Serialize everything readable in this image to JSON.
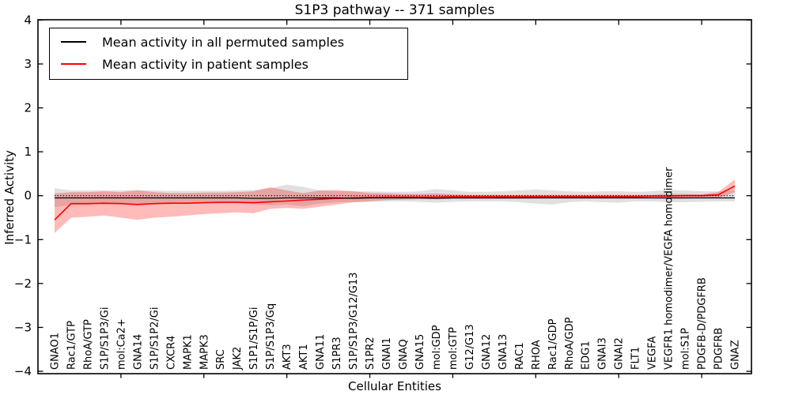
{
  "figure": {
    "background": "#ffffff",
    "frame_color": "#000000"
  },
  "legend": {
    "items": [
      {
        "label": "Mean activity in all permuted samples",
        "color": "#000000"
      },
      {
        "label": "Mean activity in patient samples",
        "color": "#ff0000"
      }
    ]
  },
  "chart_data": {
    "type": "line",
    "title": "S1P3 pathway -- 371 samples",
    "xlabel": "Cellular Entities",
    "ylabel": "Inferred Activity",
    "ylim": [
      -4,
      4
    ],
    "yticks": [
      -4,
      -3,
      -2,
      -1,
      0,
      1,
      2,
      3,
      4
    ],
    "ytick_labels": [
      "−4",
      "−3",
      "−2",
      "−1",
      "0",
      "1",
      "2",
      "3",
      "4"
    ],
    "xticks": [
      5,
      10,
      15,
      20,
      25,
      30,
      35,
      40
    ],
    "grid": false,
    "legend_position": "upper left",
    "reference_line": {
      "y": 0,
      "style": "dotted",
      "color": "#000000"
    },
    "categories": [
      "GNAO1",
      "Rac1/GTP",
      "RhoA/GTP",
      "S1P/S1P3/Gi",
      "mol:Ca2+",
      "GNA14",
      "S1P/S1P2/Gi",
      "CXCR4",
      "MAPK1",
      "MAPK3",
      "SRC",
      "JAK2",
      "S1P1/S1P/Gi",
      "S1P/S1P3/Gq",
      "AKT3",
      "AKT1",
      "GNA11",
      "S1PR3",
      "S1P/S1P3/G12/G13",
      "S1PR2",
      "GNAI1",
      "GNAQ",
      "GNA15",
      "mol:GDP",
      "mol:GTP",
      "G12/G13",
      "GNA12",
      "GNA13",
      "RAC1",
      "RHOA",
      "Rac1/GDP",
      "RhoA/GDP",
      "EDG1",
      "GNAI3",
      "GNAI2",
      "FLT1",
      "VEGFA",
      "VEGFR1 homodimer/VEGFA homodimer",
      "mol:S1P",
      "PDGFB-D/PDGFRB",
      "PDGFRB",
      "GNAZ"
    ],
    "series": [
      {
        "name": "Mean activity in all permuted samples",
        "color": "#000000",
        "values": [
          -0.05,
          -0.05,
          -0.05,
          -0.05,
          -0.05,
          -0.05,
          -0.05,
          -0.05,
          -0.05,
          -0.05,
          -0.05,
          -0.05,
          -0.06,
          -0.06,
          -0.05,
          -0.05,
          -0.05,
          -0.05,
          -0.06,
          -0.05,
          -0.05,
          -0.05,
          -0.05,
          -0.06,
          -0.05,
          -0.05,
          -0.05,
          -0.05,
          -0.05,
          -0.05,
          -0.05,
          -0.05,
          -0.05,
          -0.05,
          -0.05,
          -0.05,
          -0.05,
          -0.05,
          -0.05,
          -0.05,
          -0.05,
          -0.05
        ]
      },
      {
        "name": "Mean activity in patient samples",
        "color": "#ff0000",
        "values": [
          -0.55,
          -0.18,
          -0.18,
          -0.17,
          -0.18,
          -0.2,
          -0.18,
          -0.17,
          -0.17,
          -0.16,
          -0.15,
          -0.15,
          -0.16,
          -0.14,
          -0.12,
          -0.1,
          -0.08,
          -0.06,
          -0.05,
          -0.04,
          -0.03,
          -0.03,
          -0.03,
          -0.03,
          -0.02,
          -0.02,
          -0.02,
          -0.02,
          -0.02,
          -0.02,
          -0.02,
          -0.02,
          -0.02,
          -0.02,
          -0.02,
          -0.02,
          -0.01,
          -0.01,
          0.0,
          0.0,
          0.02,
          0.22
        ]
      }
    ],
    "bands": [
      {
        "name": "permuted-samples-range",
        "color": "#000000",
        "opacity": 0.12,
        "upper": [
          0.17,
          0.12,
          0.12,
          0.12,
          0.12,
          0.13,
          0.12,
          0.11,
          0.11,
          0.11,
          0.11,
          0.12,
          0.13,
          0.17,
          0.25,
          0.2,
          0.12,
          0.1,
          0.1,
          0.1,
          0.09,
          0.09,
          0.1,
          0.15,
          0.12,
          0.09,
          0.09,
          0.1,
          0.12,
          0.14,
          0.12,
          0.1,
          0.09,
          0.1,
          0.1,
          0.09,
          0.1,
          0.13,
          0.12,
          0.1,
          0.1,
          0.12
        ],
        "lower": [
          -0.26,
          -0.22,
          -0.22,
          -0.2,
          -0.2,
          -0.22,
          -0.2,
          -0.19,
          -0.17,
          -0.17,
          -0.17,
          -0.17,
          -0.19,
          -0.22,
          -0.2,
          -0.24,
          -0.18,
          -0.15,
          -0.15,
          -0.14,
          -0.13,
          -0.13,
          -0.14,
          -0.16,
          -0.14,
          -0.13,
          -0.13,
          -0.13,
          -0.15,
          -0.18,
          -0.2,
          -0.15,
          -0.13,
          -0.15,
          -0.16,
          -0.13,
          -0.13,
          -0.15,
          -0.15,
          -0.14,
          -0.13,
          -0.13
        ]
      },
      {
        "name": "patient-samples-range",
        "color": "#ff0000",
        "opacity": 0.27,
        "upper": [
          0.05,
          0.08,
          0.08,
          0.1,
          0.08,
          0.12,
          0.08,
          0.06,
          0.06,
          0.07,
          0.07,
          0.08,
          0.1,
          0.19,
          0.12,
          0.06,
          0.12,
          0.13,
          0.1,
          0.06,
          0.05,
          0.04,
          0.04,
          0.05,
          0.03,
          0.02,
          0.02,
          0.02,
          0.02,
          0.02,
          0.02,
          0.02,
          0.02,
          0.02,
          0.02,
          0.02,
          0.02,
          0.04,
          0.04,
          0.03,
          0.08,
          0.37
        ],
        "lower": [
          -0.85,
          -0.5,
          -0.48,
          -0.45,
          -0.5,
          -0.55,
          -0.5,
          -0.48,
          -0.45,
          -0.42,
          -0.4,
          -0.38,
          -0.4,
          -0.3,
          -0.28,
          -0.3,
          -0.25,
          -0.2,
          -0.15,
          -0.13,
          -0.1,
          -0.09,
          -0.08,
          -0.08,
          -0.07,
          -0.07,
          -0.07,
          -0.07,
          -0.07,
          -0.06,
          -0.06,
          -0.06,
          -0.06,
          -0.06,
          -0.06,
          -0.06,
          -0.06,
          -0.07,
          -0.07,
          -0.05,
          -0.05,
          0.08
        ]
      }
    ]
  }
}
